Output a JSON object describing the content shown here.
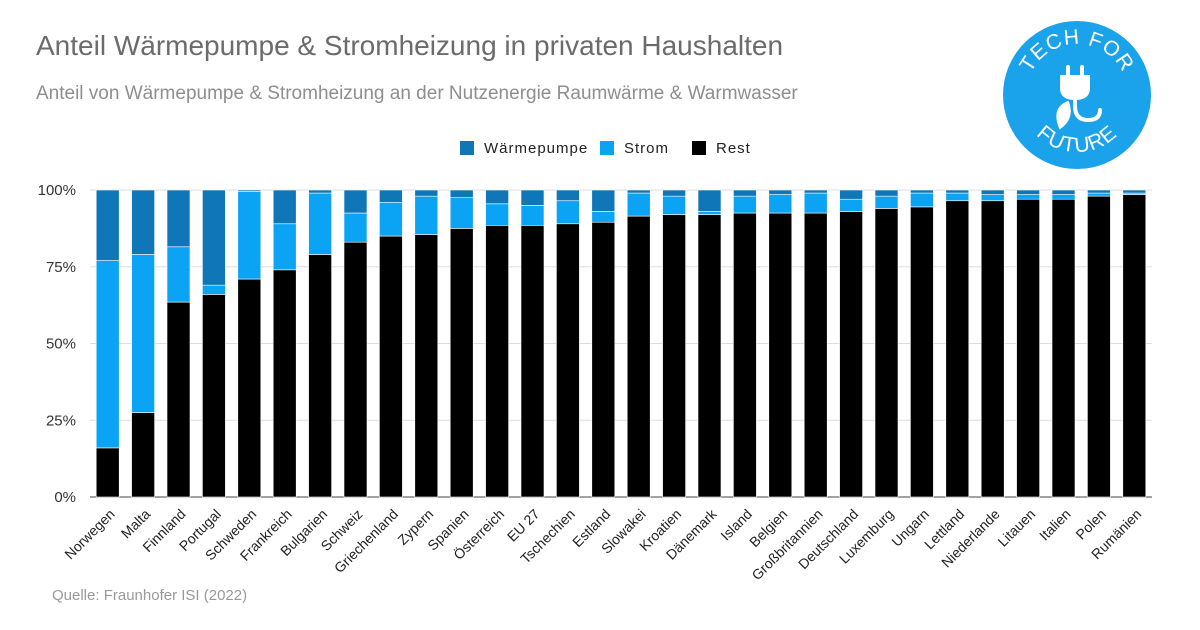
{
  "title": "Anteil Wärmepumpe & Stromheizung in privaten Haushalten",
  "subtitle": "Anteil von Wärmepumpe & Stromheizung an der Nutzenergie Raumwärme & Warmwasser",
  "source": "Quelle: Fraunhofer ISI (2022)",
  "logo": {
    "text_top": "TECH FOR",
    "text_bottom": "FUTURE",
    "color": "#1aa3ea",
    "icon": "plug-leaf-icon"
  },
  "colors": {
    "waermepumpe": "#0f76b8",
    "strom": "#0ba3f4",
    "rest": "#000000"
  },
  "chart_data": {
    "type": "bar",
    "stacked": true,
    "categories": [
      "Norwegen",
      "Malta",
      "Finnland",
      "Portugal",
      "Schweden",
      "Frankreich",
      "Bulgarien",
      "Schweiz",
      "Griechenland",
      "Zypern",
      "Spanien",
      "Österreich",
      "EU 27",
      "Tschechien",
      "Estland",
      "Slowakei",
      "Kroatien",
      "Dänemark",
      "Island",
      "Belgien",
      "Großbritannien",
      "Deutschland",
      "Luxemburg",
      "Ungarn",
      "Lettland",
      "Niederlande",
      "Litauen",
      "Italien",
      "Polen",
      "Rumänien"
    ],
    "series": [
      {
        "name": "Rest",
        "color": "#000000",
        "values": [
          16,
          27.5,
          63.5,
          66,
          71,
          74,
          79,
          83,
          85,
          85.5,
          87.5,
          88.5,
          88.5,
          89,
          89.5,
          91.5,
          92,
          92,
          92.5,
          92.5,
          92.5,
          93,
          94,
          94.5,
          96.5,
          96.5,
          97,
          97,
          98,
          98.5
        ]
      },
      {
        "name": "Strom",
        "color": "#0ba3f4",
        "values": [
          61,
          51.5,
          18,
          3,
          28.5,
          15,
          20,
          9.5,
          11,
          12.5,
          10,
          7,
          6.5,
          7.5,
          3.5,
          7.5,
          6,
          1,
          5.5,
          6,
          6.5,
          4,
          4,
          4.5,
          2.5,
          2,
          1.5,
          1.5,
          1,
          0.5
        ]
      },
      {
        "name": "Wärmepumpe",
        "color": "#0f76b8",
        "values": [
          23,
          21,
          18.5,
          31,
          0.5,
          11,
          1,
          7.5,
          4,
          2,
          2.5,
          4.5,
          5,
          3.5,
          7,
          1,
          2,
          7,
          2,
          1.5,
          1,
          3,
          2,
          1,
          1,
          1.5,
          1.5,
          1.5,
          1,
          1
        ]
      }
    ],
    "legend": {
      "position": "top-center",
      "entries": [
        {
          "name": "Wärmepumpe",
          "color": "#0f76b8"
        },
        {
          "name": "Strom",
          "color": "#0ba3f4"
        },
        {
          "name": "Rest",
          "color": "#000000"
        }
      ]
    },
    "y_ticks": [
      "0%",
      "25%",
      "50%",
      "75%",
      "100%"
    ],
    "ylim": [
      0,
      100
    ],
    "grid": true
  }
}
